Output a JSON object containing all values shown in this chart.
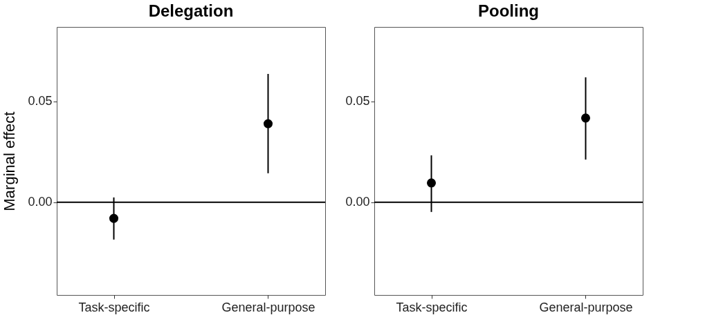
{
  "chart_data": [
    {
      "type": "scatter",
      "title": "Delegation",
      "ylabel": "Marginal effect",
      "categories": [
        "Task-specific",
        "General-purpose"
      ],
      "values": [
        -0.008,
        0.039
      ],
      "errors": [
        [
          -0.0185,
          0.0024
        ],
        [
          0.0144,
          0.0637
        ]
      ],
      "color": "#000000",
      "marker": "circle",
      "ylim": [
        -0.046,
        0.087
      ],
      "yticks": [
        {
          "value": 0,
          "label": "0.00"
        },
        0.05
      ],
      "ref_lines": [
        {
          "axis": "y",
          "value": 0
        }
      ],
      "grid": false
    },
    {
      "type": "scatter",
      "title": "Pooling",
      "categories": [
        "Task-specific",
        "General-purpose"
      ],
      "values": [
        0.0096,
        0.0418
      ],
      "errors": [
        [
          -0.0048,
          0.0233
        ],
        [
          0.0212,
          0.062
        ]
      ],
      "color": "#000000",
      "marker": "circle",
      "ylim": [
        -0.046,
        0.087
      ],
      "yticks": [
        {
          "value": 0,
          "label": "0.00"
        },
        0.05
      ],
      "ref_lines": [
        {
          "axis": "y",
          "value": 0
        }
      ],
      "grid": false
    }
  ]
}
